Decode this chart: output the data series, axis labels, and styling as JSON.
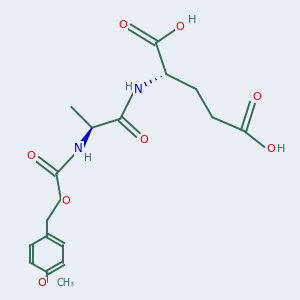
{
  "background_color": "#eaeff5",
  "atom_colors": {
    "O": "#e00000",
    "N": "#0000cc",
    "C": "#3a6b5a",
    "H": "#3a6b5a"
  },
  "bond_color": "#3a6b5a",
  "bond_width": 1.4,
  "font_size": 7.5
}
